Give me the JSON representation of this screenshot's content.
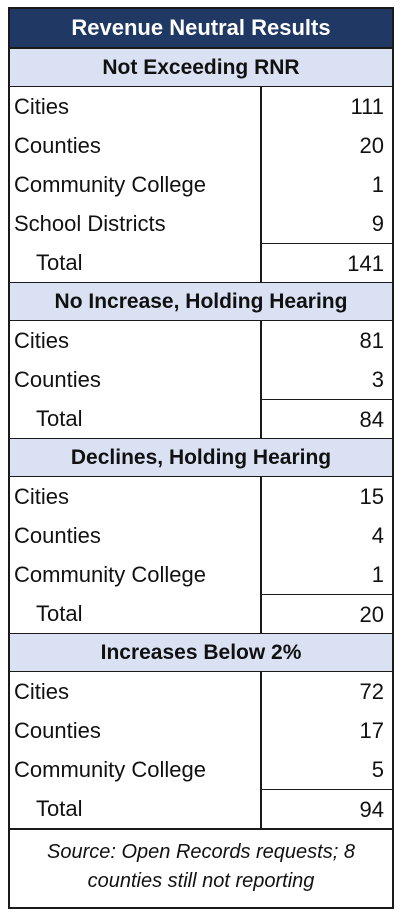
{
  "title": "Revenue Neutral Results",
  "sections": [
    {
      "heading": "Not Exceeding RNR",
      "rows": [
        {
          "label": "Cities",
          "value": "111"
        },
        {
          "label": "Counties",
          "value": "20"
        },
        {
          "label": "Community College",
          "value": "1"
        },
        {
          "label": "School Districts",
          "value": "9"
        }
      ],
      "total": {
        "label": "Total",
        "value": "141"
      }
    },
    {
      "heading": "No Increase, Holding Hearing",
      "rows": [
        {
          "label": "Cities",
          "value": "81"
        },
        {
          "label": "Counties",
          "value": "3"
        }
      ],
      "total": {
        "label": "Total",
        "value": "84"
      }
    },
    {
      "heading": "Declines, Holding Hearing",
      "rows": [
        {
          "label": "Cities",
          "value": "15"
        },
        {
          "label": "Counties",
          "value": "4"
        },
        {
          "label": "Community College",
          "value": "1"
        }
      ],
      "total": {
        "label": "Total",
        "value": "20"
      }
    },
    {
      "heading": "Increases Below 2%",
      "rows": [
        {
          "label": "Cities",
          "value": "72"
        },
        {
          "label": "Counties",
          "value": "17"
        },
        {
          "label": "Community College",
          "value": "5"
        }
      ],
      "total": {
        "label": "Total",
        "value": "94"
      }
    }
  ],
  "source": {
    "line1": "Source: Open Records requests; 8",
    "line2": "counties still not reporting"
  }
}
